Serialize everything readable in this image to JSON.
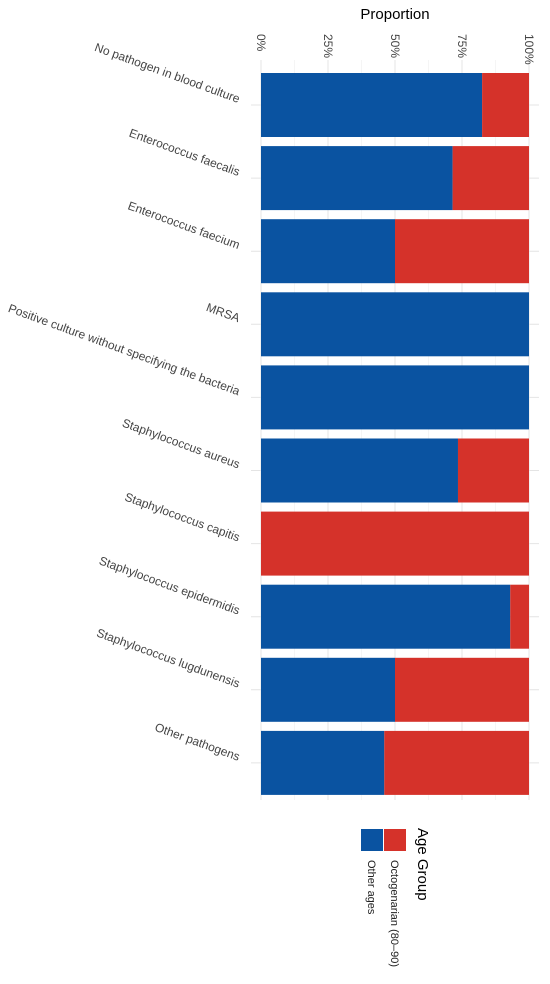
{
  "chart_data": {
    "type": "bar",
    "orientation": "horizontal-stacked-proportion",
    "title": "",
    "xlabel": "Proportion",
    "ylabel": "",
    "xlim": [
      0,
      1
    ],
    "x_ticks": [
      {
        "value": 0,
        "label": "0%"
      },
      {
        "value": 0.25,
        "label": "25%"
      },
      {
        "value": 0.5,
        "label": "50%"
      },
      {
        "value": 0.75,
        "label": "75%"
      },
      {
        "value": 1,
        "label": "100%"
      }
    ],
    "grid": true,
    "categories": [
      "No pathogen in blood culture",
      "Enterococcus faecalis",
      "Enterococcus faecium",
      "MRSA",
      "Positive culture without specifying the bacteria",
      "Staphylococcus aureus",
      "Staphylococcus capitis",
      "Staphylococcus epidermidis",
      "Staphylococcus lugdunensis",
      "Other pathogens"
    ],
    "series": [
      {
        "name": "Other ages",
        "color": "#0a53a1",
        "values": [
          0.825,
          0.715,
          0.5,
          1.0,
          1.0,
          0.735,
          0.0,
          0.93,
          0.5,
          0.46
        ]
      },
      {
        "name": "Octogenarian (80–90)",
        "color": "#d5322a",
        "values": [
          0.175,
          0.285,
          0.5,
          0.0,
          0.0,
          0.265,
          1.0,
          0.07,
          0.5,
          0.54
        ]
      }
    ],
    "legend": {
      "title": "Age Group",
      "placement": "bottom",
      "entries": [
        {
          "label": "Octogenarian (80–90)",
          "color": "#d5322a"
        },
        {
          "label": "Other ages",
          "color": "#0a53a1"
        }
      ]
    }
  }
}
